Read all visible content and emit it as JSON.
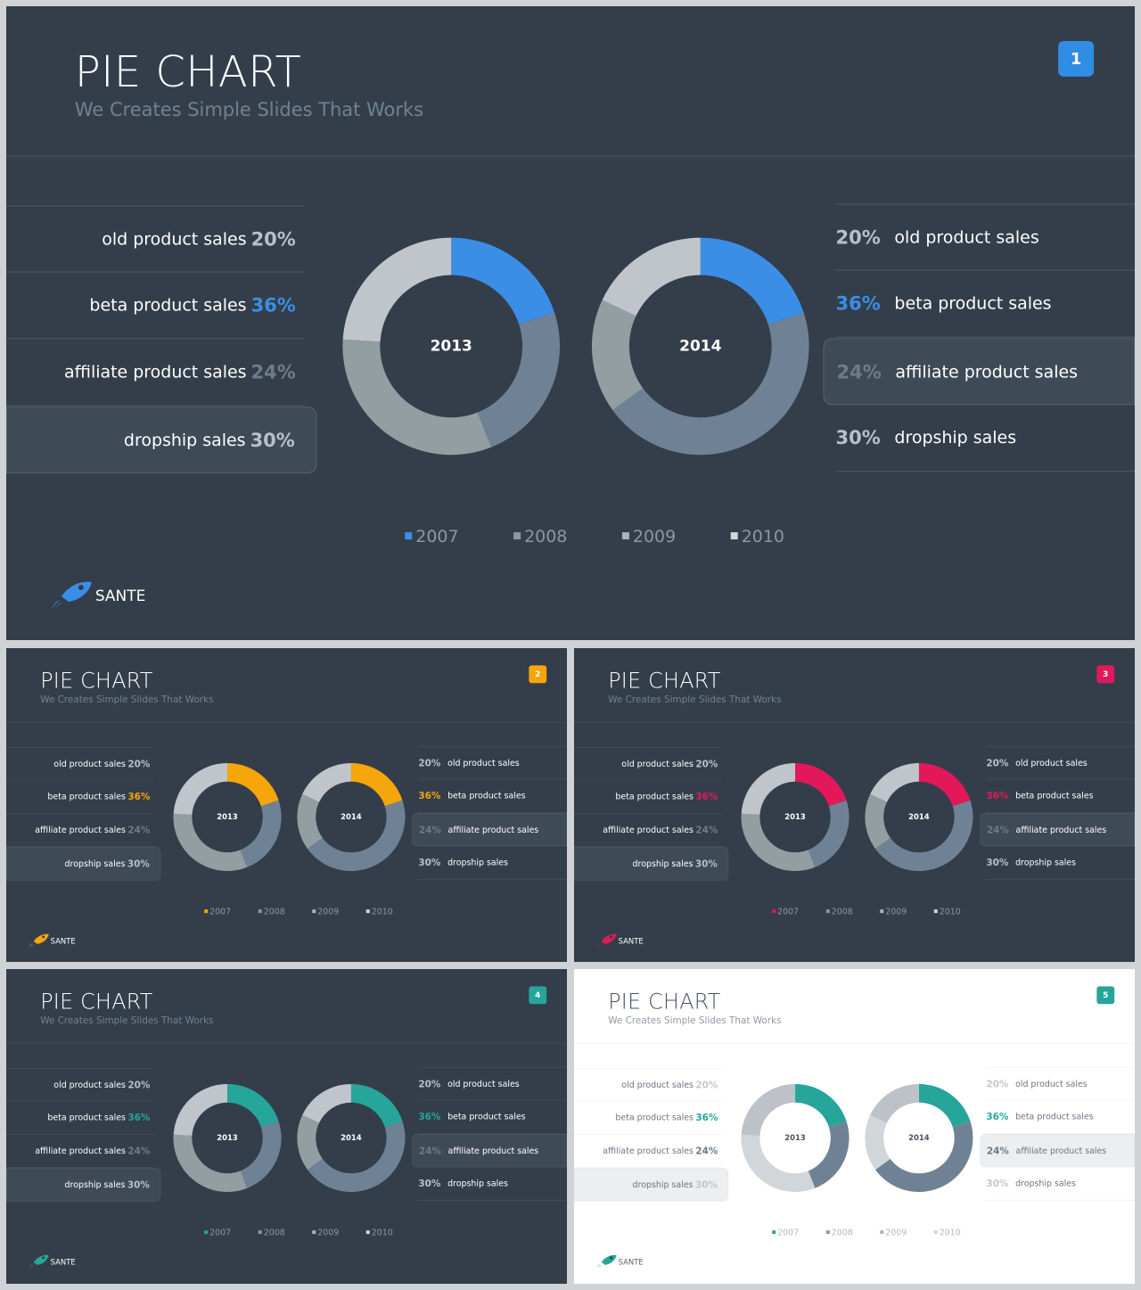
{
  "slides": [
    {
      "theme": "dark",
      "accent": "#3a8ee6",
      "title": "PIE CHART",
      "subtitle": "We Creates Simple Slides That Works",
      "badge": "1",
      "left_rows": [
        {
          "label": "old product sales",
          "pct": "20%"
        },
        {
          "label": "beta product sales",
          "pct": "36%"
        },
        {
          "label": "affiliate product sales",
          "pct": "24%"
        },
        {
          "label": "dropship sales",
          "pct": "30%"
        }
      ],
      "right_rows": [
        {
          "pct": "20%",
          "label": "old product sales"
        },
        {
          "pct": "36%",
          "label": "beta product sales"
        },
        {
          "pct": "24%",
          "label": "affiliate product sales"
        },
        {
          "pct": "30%",
          "label": "dropship sales"
        }
      ],
      "legend": [
        "2007",
        "2008",
        "2009",
        "2010"
      ],
      "logo_text": "SANTE"
    },
    {
      "theme": "dark",
      "accent": "#f5a60a",
      "title": "PIE CHART",
      "subtitle": "We Creates Simple Slides That Works",
      "badge": "2",
      "left_rows": [
        {
          "label": "old product sales",
          "pct": "20%"
        },
        {
          "label": "beta product sales",
          "pct": "36%"
        },
        {
          "label": "affiliate product sales",
          "pct": "24%"
        },
        {
          "label": "dropship sales",
          "pct": "30%"
        }
      ],
      "right_rows": [
        {
          "pct": "20%",
          "label": "old product sales"
        },
        {
          "pct": "36%",
          "label": "beta product sales"
        },
        {
          "pct": "24%",
          "label": "affiliate product sales"
        },
        {
          "pct": "30%",
          "label": "dropship sales"
        }
      ],
      "legend": [
        "2007",
        "2008",
        "2009",
        "2010"
      ],
      "logo_text": "SANTE"
    },
    {
      "theme": "dark",
      "accent": "#e2185b",
      "title": "PIE CHART",
      "subtitle": "We Creates Simple Slides That Works",
      "badge": "3",
      "left_rows": [
        {
          "label": "old product sales",
          "pct": "20%"
        },
        {
          "label": "beta product sales",
          "pct": "36%"
        },
        {
          "label": "affiliate product sales",
          "pct": "24%"
        },
        {
          "label": "dropship sales",
          "pct": "30%"
        }
      ],
      "right_rows": [
        {
          "pct": "20%",
          "label": "old product sales"
        },
        {
          "pct": "36%",
          "label": "beta product sales"
        },
        {
          "pct": "24%",
          "label": "affiliate product sales"
        },
        {
          "pct": "30%",
          "label": "dropship sales"
        }
      ],
      "legend": [
        "2007",
        "2008",
        "2009",
        "2010"
      ],
      "logo_text": "SANTE"
    },
    {
      "theme": "dark",
      "accent": "#26a69a",
      "title": "PIE CHART",
      "subtitle": "We Creates Simple Slides That Works",
      "badge": "4",
      "left_rows": [
        {
          "label": "old product sales",
          "pct": "20%"
        },
        {
          "label": "beta product sales",
          "pct": "36%"
        },
        {
          "label": "affiliate product sales",
          "pct": "24%"
        },
        {
          "label": "dropship sales",
          "pct": "30%"
        }
      ],
      "right_rows": [
        {
          "pct": "20%",
          "label": "old product sales"
        },
        {
          "pct": "36%",
          "label": "beta product sales"
        },
        {
          "pct": "24%",
          "label": "affiliate product sales"
        },
        {
          "pct": "30%",
          "label": "dropship sales"
        }
      ],
      "legend": [
        "2007",
        "2008",
        "2009",
        "2010"
      ],
      "logo_text": "SANTE"
    },
    {
      "theme": "light",
      "accent": "#26a69a",
      "title": "PIE CHART",
      "subtitle": "We Creates Simple Slides That Works",
      "badge": "5",
      "left_rows": [
        {
          "label": "old product sales",
          "pct": "20%"
        },
        {
          "label": "beta product sales",
          "pct": "36%"
        },
        {
          "label": "affiliate product sales",
          "pct": "24%"
        },
        {
          "label": "dropship sales",
          "pct": "30%"
        }
      ],
      "right_rows": [
        {
          "pct": "20%",
          "label": "old product sales"
        },
        {
          "pct": "36%",
          "label": "beta product sales"
        },
        {
          "pct": "24%",
          "label": "affiliate product sales"
        },
        {
          "pct": "30%",
          "label": "dropship sales"
        }
      ],
      "legend": [
        "2007",
        "2008",
        "2009",
        "2010"
      ],
      "logo_text": "SANTE"
    }
  ],
  "chart_data": [
    {
      "type": "pie",
      "title": "",
      "center_label": "2013",
      "categories": [
        "2007",
        "2008",
        "2009",
        "2010"
      ],
      "values": [
        20,
        24,
        32,
        24
      ]
    },
    {
      "type": "pie",
      "title": "",
      "center_label": "2014",
      "categories": [
        "2007",
        "2008",
        "2009",
        "2010"
      ],
      "values": [
        20,
        45,
        17,
        18
      ]
    }
  ]
}
